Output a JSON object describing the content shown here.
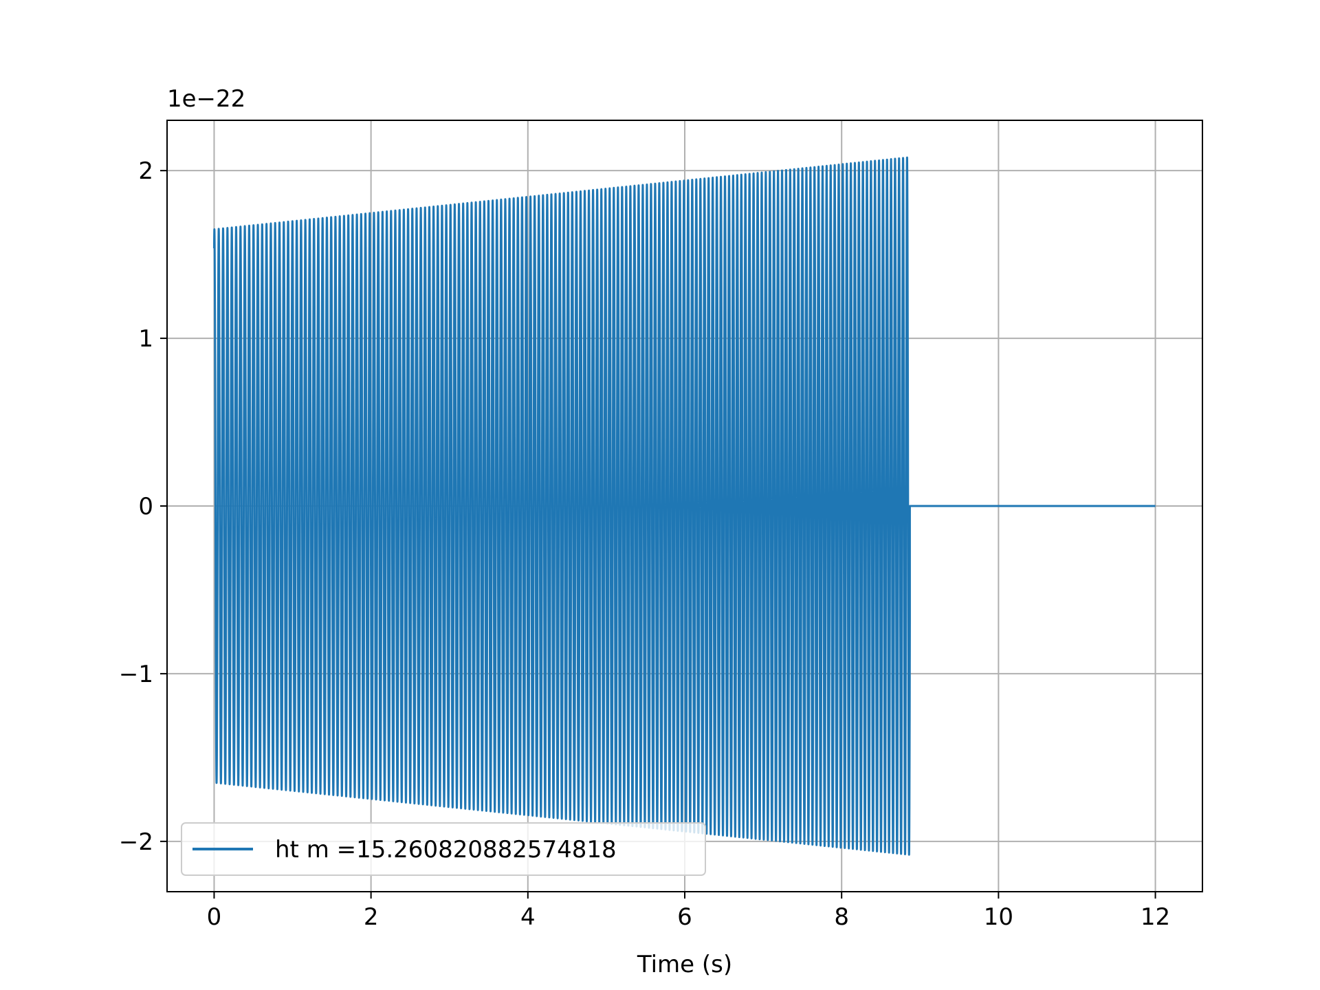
{
  "chart_data": {
    "type": "line",
    "title": "",
    "xlabel": "Time (s)",
    "ylabel": "",
    "y_offset_label": "1e−22",
    "xlim": [
      -0.6,
      12.6
    ],
    "ylim": [
      -2.3,
      2.3
    ],
    "xticks": [
      0,
      2,
      4,
      6,
      8,
      10,
      12
    ],
    "xtick_labels": [
      "0",
      "2",
      "4",
      "6",
      "8",
      "10",
      "12"
    ],
    "yticks": [
      -2,
      -1,
      0,
      1,
      2
    ],
    "ytick_labels": [
      "−2",
      "−1",
      "0",
      "1",
      "2"
    ],
    "grid": true,
    "legend_position": "lower-left",
    "series": [
      {
        "name": "ht m =15.260820882574818",
        "color": "#1f77b4",
        "signal_start": 0.0,
        "signal_end": 8.87,
        "flat_end": 12.0,
        "start_amplitude": 1.65,
        "end_amplitude": 2.08,
        "start_frequency": 18.0,
        "end_frequency": 19.6
      }
    ]
  }
}
